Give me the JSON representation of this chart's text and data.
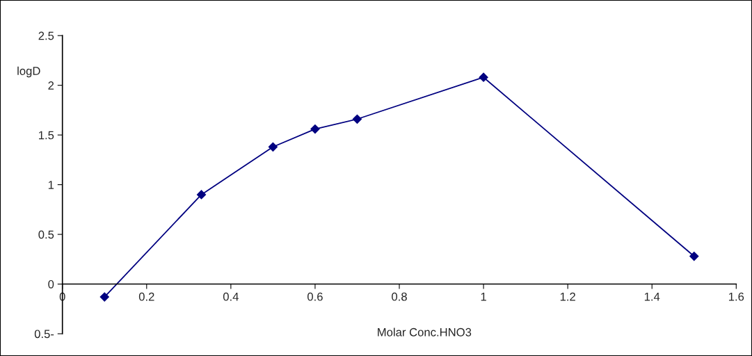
{
  "chart_data": {
    "type": "line",
    "xlabel": "Molar Conc.HNO3",
    "ylabel": "logD",
    "x": [
      0.1,
      0.33,
      0.5,
      0.6,
      0.7,
      1.0,
      1.5
    ],
    "series": [
      {
        "color": "#000080",
        "values": [
          -0.13,
          0.9,
          1.38,
          1.56,
          1.66,
          2.08,
          0.28
        ]
      }
    ],
    "xlim": [
      0,
      1.6
    ],
    "xticks": [
      0,
      0.2,
      0.4,
      0.6,
      0.8,
      1,
      1.2,
      1.4,
      1.6
    ],
    "ylim": [
      -0.5,
      2.5
    ],
    "yticks": [
      {
        "value": -0.5,
        "label": "0.5-"
      },
      0,
      0.5,
      1,
      1.5,
      2,
      2.5
    ],
    "marker": "diamond",
    "line_style": "solid",
    "grid": false,
    "legend": false
  }
}
